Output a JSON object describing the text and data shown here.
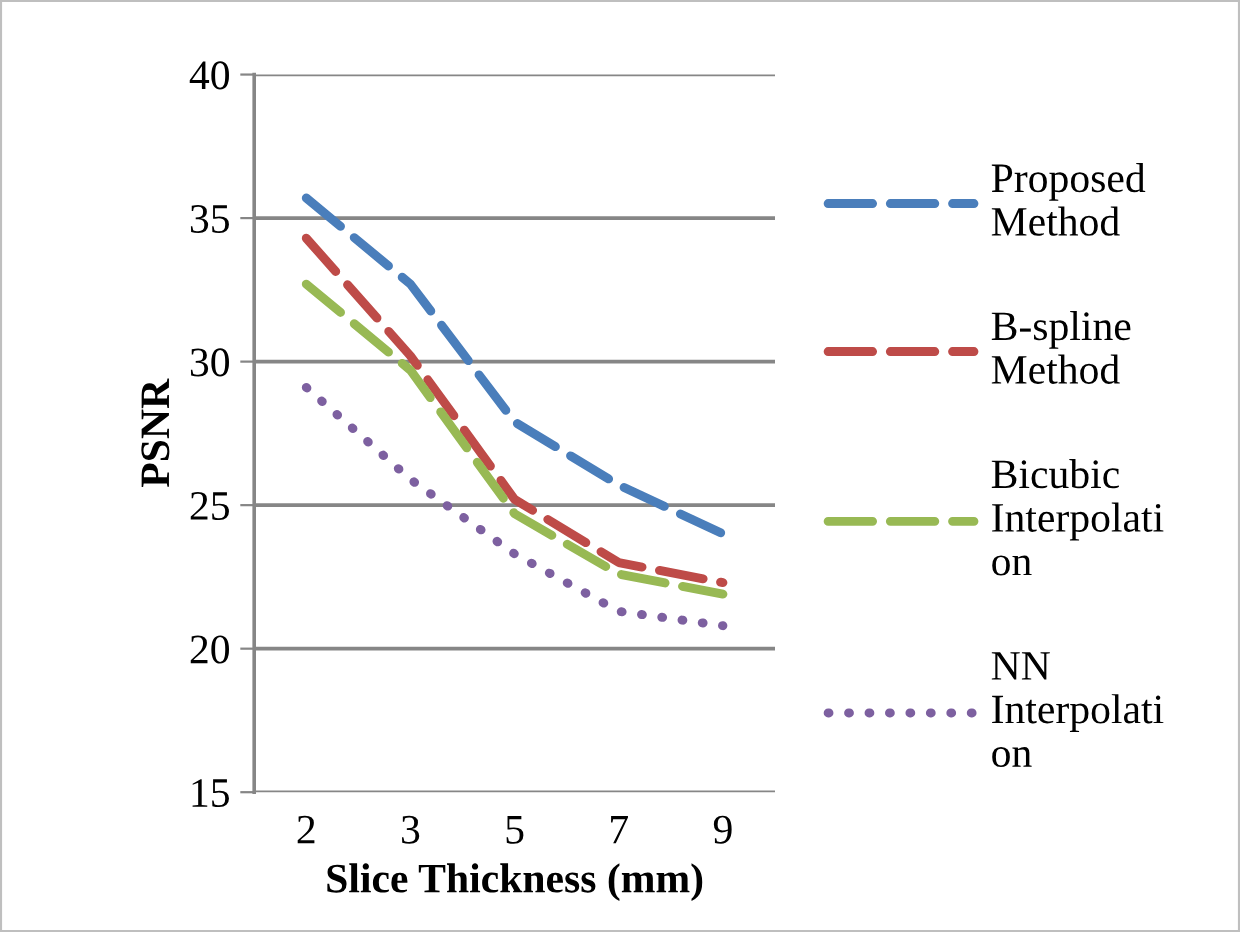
{
  "chart_data": {
    "type": "line",
    "xlabel": "Slice Thickness (mm)",
    "ylabel": "PSNR",
    "categories": [
      "2",
      "3",
      "5",
      "7",
      "9"
    ],
    "ylim": [
      15,
      40
    ],
    "yticks": [
      15,
      20,
      25,
      30,
      35,
      40
    ],
    "grid": "y",
    "legend": "right",
    "marker": "none",
    "series": [
      {
        "name": "Proposed\nMethod",
        "color": "#4a7ebb",
        "line_style": "dashed",
        "values": [
          35.7,
          32.7,
          27.9,
          25.7,
          24.0
        ]
      },
      {
        "name": "B-spline\nMethod",
        "color": "#be4b48",
        "line_style": "dashed",
        "values": [
          34.3,
          30.2,
          25.2,
          23.0,
          22.3
        ]
      },
      {
        "name": "Bicubic\nInterpolati\non",
        "color": "#98b954",
        "line_style": "dashed",
        "values": [
          32.7,
          29.7,
          24.7,
          22.6,
          21.9
        ]
      },
      {
        "name": "NN\nInterpolati\non",
        "color": "#7d60a0",
        "line_style": "dotted",
        "values": [
          29.1,
          25.9,
          23.3,
          21.3,
          20.8
        ]
      }
    ]
  }
}
